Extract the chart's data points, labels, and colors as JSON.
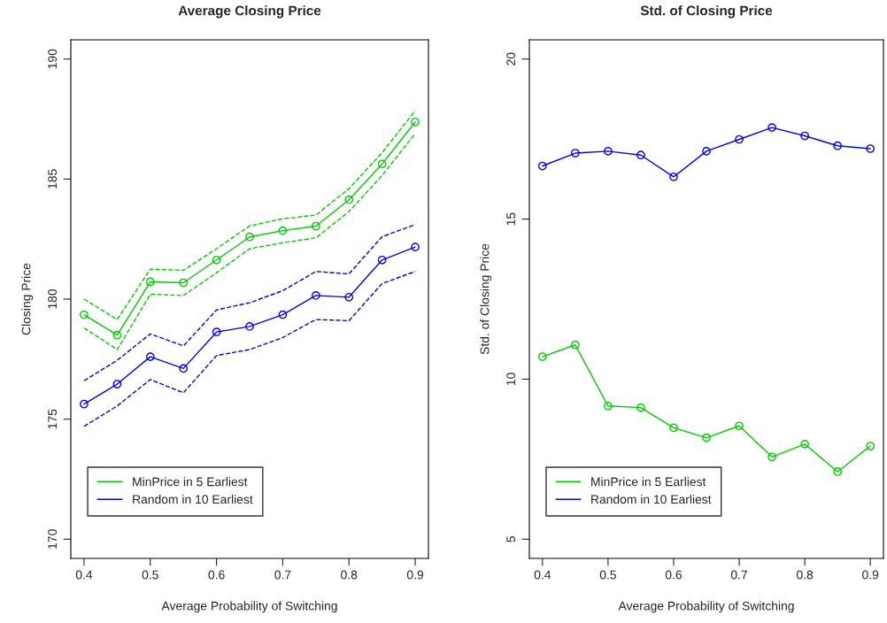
{
  "chart_data": [
    {
      "type": "line",
      "title": "Average Closing Price",
      "xlabel": "Average Probability of Switching",
      "ylabel": "Closing Price",
      "x": [
        0.4,
        0.45,
        0.5,
        0.55,
        0.6,
        0.65,
        0.7,
        0.75,
        0.8,
        0.85,
        0.9
      ],
      "series": [
        {
          "name": "MinPrice in 5 Earliest",
          "color": "#00cd00",
          "values": [
            179.35,
            178.5,
            180.72,
            180.68,
            181.63,
            182.59,
            182.85,
            183.04,
            184.14,
            185.63,
            187.38
          ]
        },
        {
          "name": "Random in 10 Earliest",
          "color": "#0000ff",
          "values": [
            175.63,
            176.46,
            177.6,
            177.11,
            178.63,
            178.86,
            179.35,
            180.15,
            180.08,
            181.63,
            182.17
          ]
        },
        {
          "color": "#00cd00",
          "line_style": "dashed",
          "marker": "none",
          "values": [
            178.8,
            177.9,
            180.2,
            180.15,
            181.1,
            182.1,
            182.35,
            182.55,
            183.65,
            185.15,
            186.9
          ]
        },
        {
          "color": "#00cd00",
          "line_style": "dashed",
          "marker": "none",
          "values": [
            180.0,
            179.15,
            181.25,
            181.2,
            182.1,
            183.05,
            183.35,
            183.5,
            184.6,
            186.1,
            187.85
          ]
        },
        {
          "color": "#0000ff",
          "line_style": "dashed",
          "marker": "none",
          "values": [
            174.7,
            175.55,
            176.65,
            176.1,
            177.65,
            177.9,
            178.4,
            179.15,
            179.1,
            180.65,
            181.15
          ]
        },
        {
          "color": "#0000ff",
          "line_style": "dashed",
          "marker": "none",
          "values": [
            176.6,
            177.45,
            178.55,
            178.05,
            179.55,
            179.85,
            180.35,
            181.15,
            181.05,
            182.6,
            183.1
          ]
        }
      ],
      "xlim": [
        0.38,
        0.92
      ],
      "xticks": [
        0.4,
        0.5,
        0.6,
        0.7,
        0.8,
        0.9
      ],
      "ylim": [
        169.2,
        190.8
      ],
      "yticks": [
        170,
        175,
        180,
        185,
        190
      ],
      "grid": false,
      "legend": "bottom left",
      "marker": "circle",
      "line_style": "solid"
    },
    {
      "type": "line",
      "title": "Std. of Closing Price",
      "xlabel": "Average Probability of Switching",
      "ylabel": "Std. of Closing Price",
      "x": [
        0.4,
        0.45,
        0.5,
        0.55,
        0.6,
        0.65,
        0.7,
        0.75,
        0.8,
        0.85,
        0.9
      ],
      "series": [
        {
          "name": "MinPrice in 5 Earliest",
          "color": "#00cd00",
          "values": [
            10.7,
            11.07,
            9.16,
            9.11,
            8.48,
            8.17,
            8.54,
            7.57,
            7.97,
            7.11,
            7.91
          ]
        },
        {
          "name": "Random in 10 Earliest",
          "color": "#0000ff",
          "values": [
            16.66,
            17.06,
            17.12,
            17.0,
            16.32,
            17.12,
            17.49,
            17.86,
            17.6,
            17.29,
            17.2
          ]
        }
      ],
      "xlim": [
        0.38,
        0.92
      ],
      "xticks": [
        0.4,
        0.5,
        0.6,
        0.7,
        0.8,
        0.9
      ],
      "ylim": [
        4.4,
        20.6
      ],
      "yticks": [
        5,
        10,
        15,
        20
      ],
      "grid": false,
      "legend": "bottom left",
      "marker": "circle",
      "line_style": "solid"
    }
  ]
}
